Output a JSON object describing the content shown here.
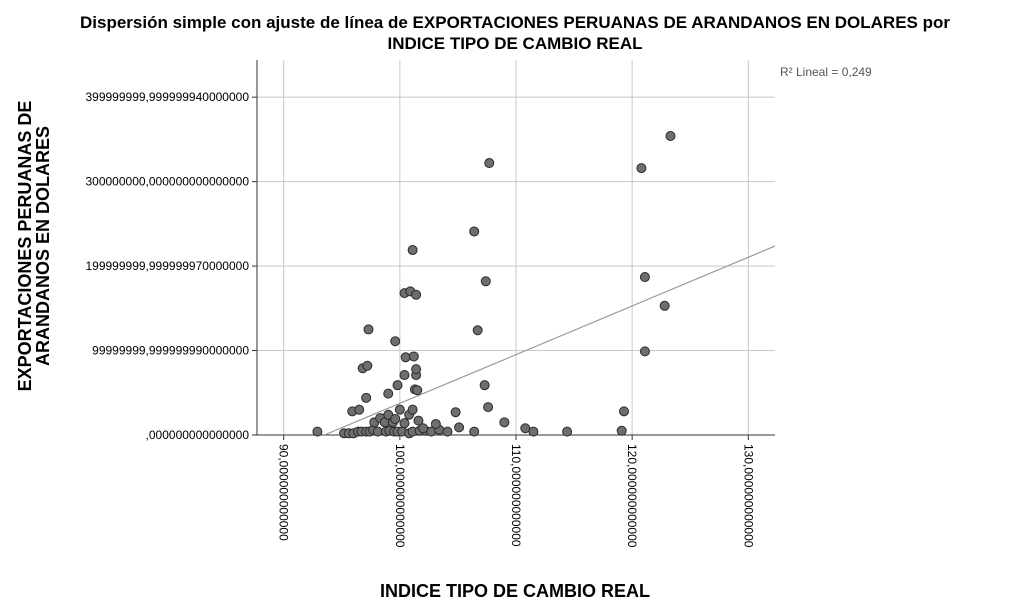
{
  "chart_data": {
    "type": "scatter",
    "title": [
      "Dispersión simple con ajuste de línea de EXPORTACIONES PERUANAS DE ARANDANOS EN DOLARES por",
      "INDICE TIPO DE CAMBIO REAL"
    ],
    "x_label": "INDICE TIPO DE CAMBIO REAL",
    "y_label": [
      "EXPORTACIONES PERUANAS DE",
      "ARANDANOS EN DOLARES"
    ],
    "annotation": "R² Lineal = 0,249",
    "xlim": [
      87.7,
      132.3
    ],
    "ylim": [
      0,
      444000000
    ],
    "xticks": [
      {
        "value": 90,
        "label": "90,000000000000"
      },
      {
        "value": 100,
        "label": "100,000000000000"
      },
      {
        "value": 110,
        "label": "110,000000000000"
      },
      {
        "value": 120,
        "label": "120,000000000000"
      },
      {
        "value": 130,
        "label": "130,000000000000"
      }
    ],
    "yticks": [
      {
        "value": 0,
        "label": ",000000000000000"
      },
      {
        "value": 100000000,
        "label": "99999999,999999990000000"
      },
      {
        "value": 200000000,
        "label": "199999999,999999970000000"
      },
      {
        "value": 300000000,
        "label": "300000000,000000000000000"
      },
      {
        "value": 400000000,
        "label": "399999999,999999940000000"
      }
    ],
    "grid": true,
    "color": "#6e6e6e",
    "x": [
      92.9,
      95.2,
      95.6,
      96.0,
      96.4,
      96.7,
      97.1,
      97.4,
      97.7,
      98.1,
      98.8,
      99.1,
      99.5,
      99.8,
      100.2,
      100.8,
      101.1,
      101.7,
      102.2,
      102.7,
      103.4,
      104.1,
      105.1,
      106.4,
      110.8,
      111.5,
      114.4,
      119.1,
      95.9,
      96.5,
      97.1,
      97.8,
      98.3,
      98.7,
      99.0,
      99.4,
      99.6,
      100.0,
      100.4,
      100.8,
      101.1,
      101.6,
      102.0,
      103.1,
      104.8,
      107.6,
      109.0,
      119.3,
      96.8,
      97.2,
      99.0,
      99.8,
      100.4,
      100.5,
      101.2,
      101.4,
      101.4,
      101.3,
      101.5,
      97.3,
      99.6,
      100.4,
      100.9,
      101.4,
      101.1,
      106.4,
      106.7,
      107.4,
      107.3,
      107.7,
      120.8,
      121.1,
      121.1,
      122.8,
      123.3
    ],
    "values": [
      4000000,
      2000000,
      2000000,
      2000000,
      4000000,
      4000000,
      4000000,
      4000000,
      6000000,
      4000000,
      4000000,
      5000000,
      4000000,
      4000000,
      4000000,
      2000000,
      4000000,
      5000000,
      5000000,
      4000000,
      6000000,
      4000000,
      9000000,
      4000000,
      8000000,
      4000000,
      4000000,
      5000000,
      28000000,
      30000000,
      44000000,
      15000000,
      20000000,
      15000000,
      24000000,
      15000000,
      19000000,
      30000000,
      14000000,
      24000000,
      30000000,
      17000000,
      8000000,
      13000000,
      27000000,
      33000000,
      15000000,
      28000000,
      79000000,
      82000000,
      49000000,
      59000000,
      71000000,
      92000000,
      93000000,
      71000000,
      78000000,
      54000000,
      53000000,
      125000000,
      111000000,
      168000000,
      170000000,
      166000000,
      219000000,
      241000000,
      124000000,
      182000000,
      59000000,
      322000000,
      316000000,
      187000000,
      99000000,
      153000000,
      354000000
    ],
    "fit_line": {
      "x": [
        93.5,
        132.3
      ],
      "values": [
        0,
        223700000
      ],
      "color": "#999999"
    }
  }
}
